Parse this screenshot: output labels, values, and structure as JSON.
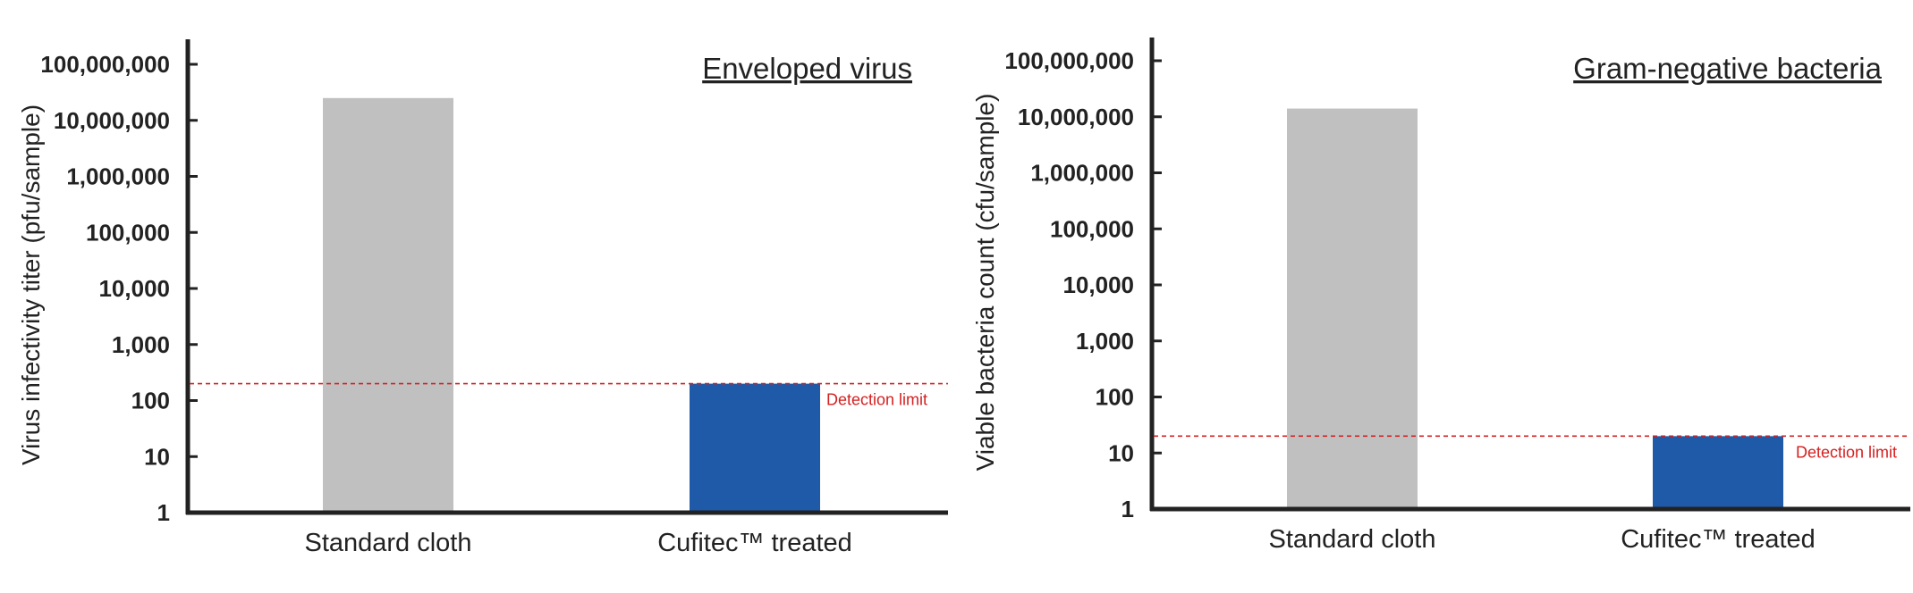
{
  "chart_data": [
    {
      "type": "bar",
      "title": "Enveloped virus",
      "ylabel": "Virus infectivity titer (pfu/sample)",
      "xlabel": "",
      "yscale": "log",
      "ylim": [
        1,
        100000000
      ],
      "yticks": [
        1,
        10,
        100,
        1000,
        10000,
        100000,
        1000000,
        10000000,
        100000000
      ],
      "ytick_labels": [
        "1",
        "10",
        "100",
        "1,000",
        "10,000",
        "100,000",
        "1,000,000",
        "10,000,000",
        "100,000,000"
      ],
      "categories": [
        "Standard cloth",
        "Cufitec™ treated"
      ],
      "values": [
        25000000,
        200
      ],
      "bar_colors": [
        "#c0c0c0",
        "#1f5aa8"
      ],
      "reference_line": {
        "label": "Detection limit",
        "value": 200,
        "color": "#d42020"
      },
      "grid": false,
      "legend": "none"
    },
    {
      "type": "bar",
      "title": "Gram-negative bacteria",
      "ylabel": "Viable bacteria count (cfu/sample)",
      "xlabel": "",
      "yscale": "log",
      "ylim": [
        1,
        100000000
      ],
      "yticks": [
        1,
        10,
        100,
        1000,
        10000,
        100000,
        1000000,
        10000000,
        100000000
      ],
      "ytick_labels": [
        "1",
        "10",
        "100",
        "1,000",
        "10,000",
        "100,000",
        "1,000,000",
        "10,000,000",
        "100,000,000"
      ],
      "categories": [
        "Standard cloth",
        "Cufitec™ treated"
      ],
      "values": [
        14000000,
        20
      ],
      "bar_colors": [
        "#c0c0c0",
        "#1f5aa8"
      ],
      "reference_line": {
        "label": "Detection limit",
        "value": 20,
        "color": "#d42020"
      },
      "grid": false,
      "legend": "none"
    }
  ]
}
